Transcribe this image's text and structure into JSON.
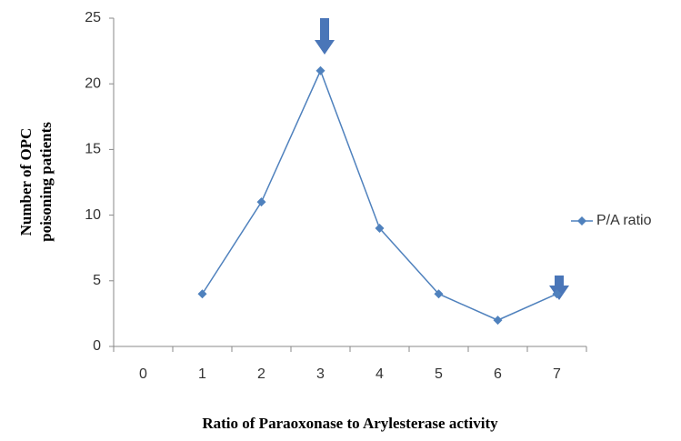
{
  "chart_data": {
    "type": "line",
    "x_label": "Ratio of Paraoxonase to Arylesterase activity",
    "y_label": [
      "Number of OPC",
      "poisoning patients"
    ],
    "categories": [
      "0",
      "1",
      "2",
      "3",
      "4",
      "5",
      "6",
      "7"
    ],
    "series": [
      {
        "name": "P/A ratio",
        "color": "#4f81bd",
        "values": [
          null,
          4,
          11,
          21,
          9,
          4,
          2,
          4
        ]
      }
    ],
    "ylim": [
      0,
      25
    ],
    "yticks": [
      0,
      5,
      10,
      15,
      20,
      25
    ],
    "legend": "right",
    "grid": false
  }
}
